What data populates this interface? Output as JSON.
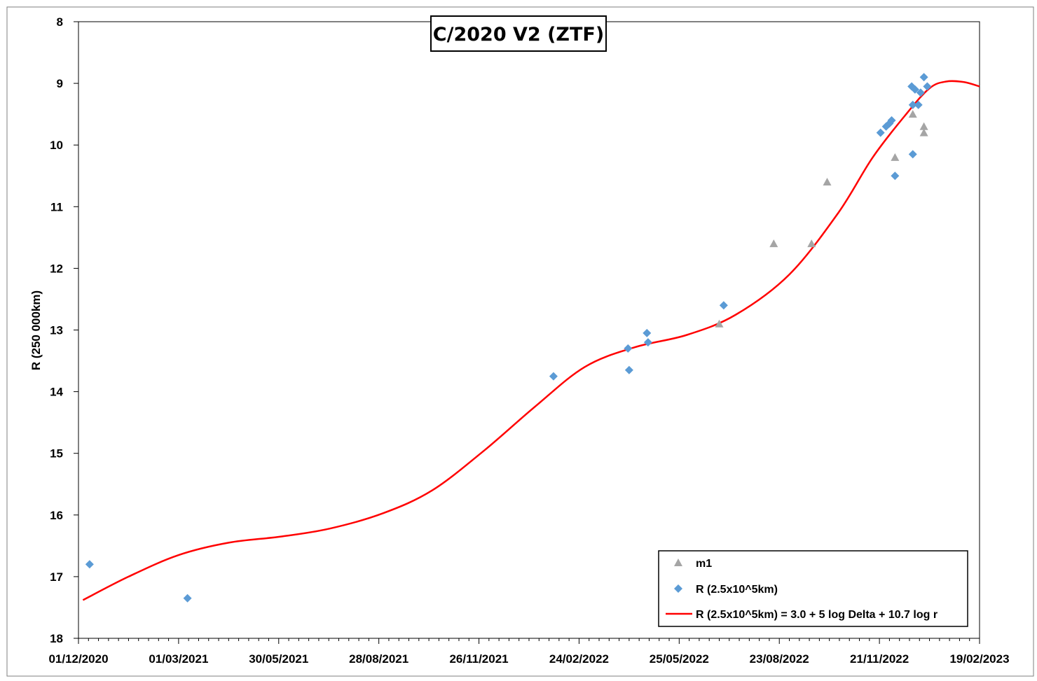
{
  "chart_data": {
    "type": "scatter",
    "title": "C/2020 V2 (ZTF)",
    "xlabel": "",
    "ylabel": "R (250 000km)",
    "x_axis": {
      "type": "date",
      "range": [
        "2020-12-01",
        "2023-02-19"
      ],
      "tick_labels": [
        "01/12/2020",
        "01/03/2021",
        "30/05/2021",
        "28/08/2021",
        "26/11/2021",
        "24/02/2022",
        "25/05/2022",
        "23/08/2022",
        "21/11/2022",
        "19/02/2023"
      ],
      "tick_dates": [
        "2020-12-01",
        "2021-03-01",
        "2021-05-30",
        "2021-08-28",
        "2021-11-26",
        "2022-02-24",
        "2022-05-25",
        "2022-08-23",
        "2022-11-21",
        "2023-02-19"
      ]
    },
    "y_axis": {
      "range": [
        8,
        18
      ],
      "reversed": true,
      "tick_labels": [
        "8",
        "9",
        "10",
        "11",
        "12",
        "13",
        "14",
        "15",
        "16",
        "17",
        "18"
      ],
      "tick_values": [
        8,
        9,
        10,
        11,
        12,
        13,
        14,
        15,
        16,
        17,
        18
      ]
    },
    "grid": false,
    "legend_position": "bottom-right",
    "series": [
      {
        "name": "m1",
        "marker": "triangle",
        "color": "#a5a5a5",
        "points": [
          {
            "x": "2022-06-30",
            "y": 12.9
          },
          {
            "x": "2022-08-18",
            "y": 11.6
          },
          {
            "x": "2022-09-21",
            "y": 11.6
          },
          {
            "x": "2022-10-05",
            "y": 10.6
          },
          {
            "x": "2022-12-05",
            "y": 10.2
          },
          {
            "x": "2022-12-21",
            "y": 9.5
          },
          {
            "x": "2022-12-31",
            "y": 9.7
          },
          {
            "x": "2022-12-31",
            "y": 9.8
          }
        ]
      },
      {
        "name": "R (2.5x10^5km)",
        "marker": "diamond",
        "color": "#5b9bd5",
        "points": [
          {
            "x": "2020-12-11",
            "y": 16.8
          },
          {
            "x": "2021-03-09",
            "y": 17.35
          },
          {
            "x": "2022-02-01",
            "y": 13.75
          },
          {
            "x": "2022-04-09",
            "y": 13.3
          },
          {
            "x": "2022-04-10",
            "y": 13.65
          },
          {
            "x": "2022-04-26",
            "y": 13.05
          },
          {
            "x": "2022-04-27",
            "y": 13.2
          },
          {
            "x": "2022-07-04",
            "y": 12.6
          },
          {
            "x": "2022-11-22",
            "y": 9.8
          },
          {
            "x": "2022-11-27",
            "y": 9.7
          },
          {
            "x": "2022-11-30",
            "y": 9.65
          },
          {
            "x": "2022-12-02",
            "y": 9.6
          },
          {
            "x": "2022-12-05",
            "y": 10.5
          },
          {
            "x": "2022-12-20",
            "y": 9.05
          },
          {
            "x": "2022-12-21",
            "y": 9.35
          },
          {
            "x": "2022-12-21",
            "y": 10.15
          },
          {
            "x": "2022-12-23",
            "y": 9.1
          },
          {
            "x": "2022-12-26",
            "y": 9.35
          },
          {
            "x": "2022-12-28",
            "y": 9.15
          },
          {
            "x": "2022-12-31",
            "y": 8.9
          },
          {
            "x": "2023-01-03",
            "y": 9.05
          }
        ]
      },
      {
        "name": "R (2.5x10^5km) = 3.0 + 5 log Delta + 10.7 log r",
        "marker": "line",
        "color": "#ff0000",
        "points": [
          {
            "x": "2020-12-05",
            "y": 17.38
          },
          {
            "x": "2021-01-15",
            "y": 17.0
          },
          {
            "x": "2021-03-01",
            "y": 16.65
          },
          {
            "x": "2021-04-15",
            "y": 16.45
          },
          {
            "x": "2021-06-01",
            "y": 16.35
          },
          {
            "x": "2021-07-15",
            "y": 16.22
          },
          {
            "x": "2021-09-01",
            "y": 15.97
          },
          {
            "x": "2021-10-15",
            "y": 15.6
          },
          {
            "x": "2021-12-01",
            "y": 14.95
          },
          {
            "x": "2022-01-15",
            "y": 14.25
          },
          {
            "x": "2022-03-01",
            "y": 13.6
          },
          {
            "x": "2022-04-15",
            "y": 13.28
          },
          {
            "x": "2022-06-01",
            "y": 13.08
          },
          {
            "x": "2022-07-15",
            "y": 12.75
          },
          {
            "x": "2022-09-01",
            "y": 12.1
          },
          {
            "x": "2022-10-15",
            "y": 11.1
          },
          {
            "x": "2022-11-15",
            "y": 10.2
          },
          {
            "x": "2022-12-15",
            "y": 9.5
          },
          {
            "x": "2023-01-05",
            "y": 9.08
          },
          {
            "x": "2023-01-20",
            "y": 8.97
          },
          {
            "x": "2023-02-05",
            "y": 8.98
          },
          {
            "x": "2023-02-19",
            "y": 9.05
          }
        ]
      }
    ]
  }
}
